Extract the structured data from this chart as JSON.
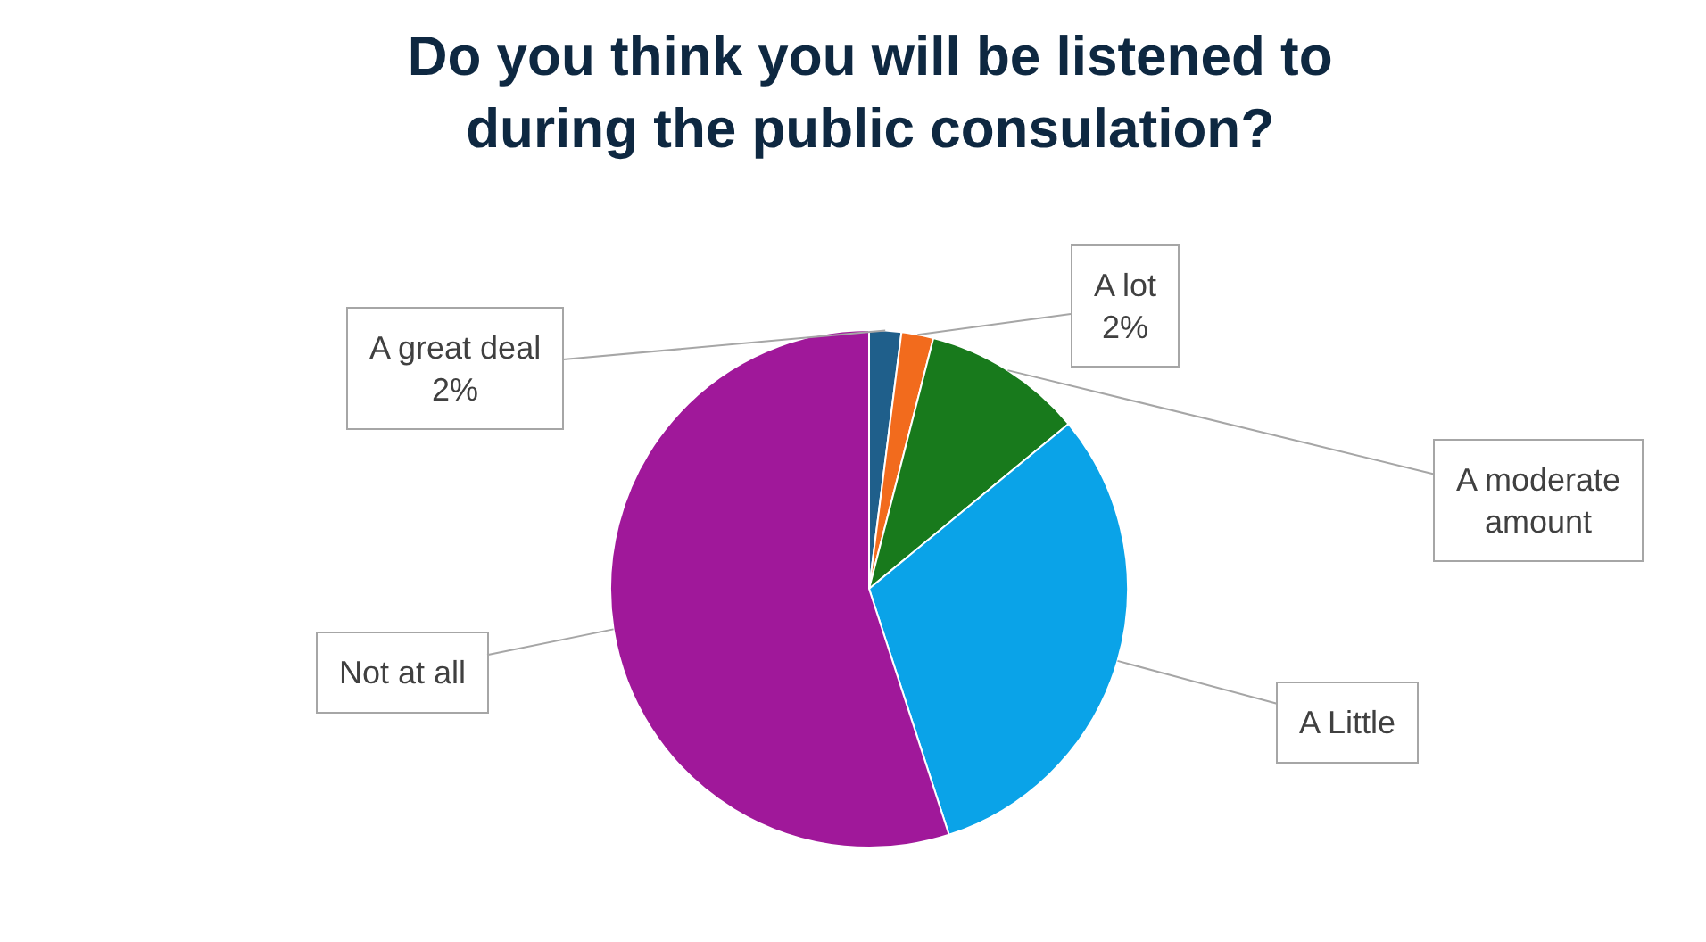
{
  "chart_data": {
    "type": "pie",
    "title": "Do you think you will be listened to during the public consulation?",
    "categories": [
      "A great deal",
      "A lot",
      "A moderate amount",
      "A Little",
      "Not at all"
    ],
    "values": [
      2,
      2,
      10,
      31,
      55
    ],
    "colors": [
      "#1f5f8b",
      "#f26b1d",
      "#187a1c",
      "#0aa3e8",
      "#a0189a"
    ],
    "value_labels": [
      "2%",
      "2%",
      null,
      null,
      null
    ]
  }
}
